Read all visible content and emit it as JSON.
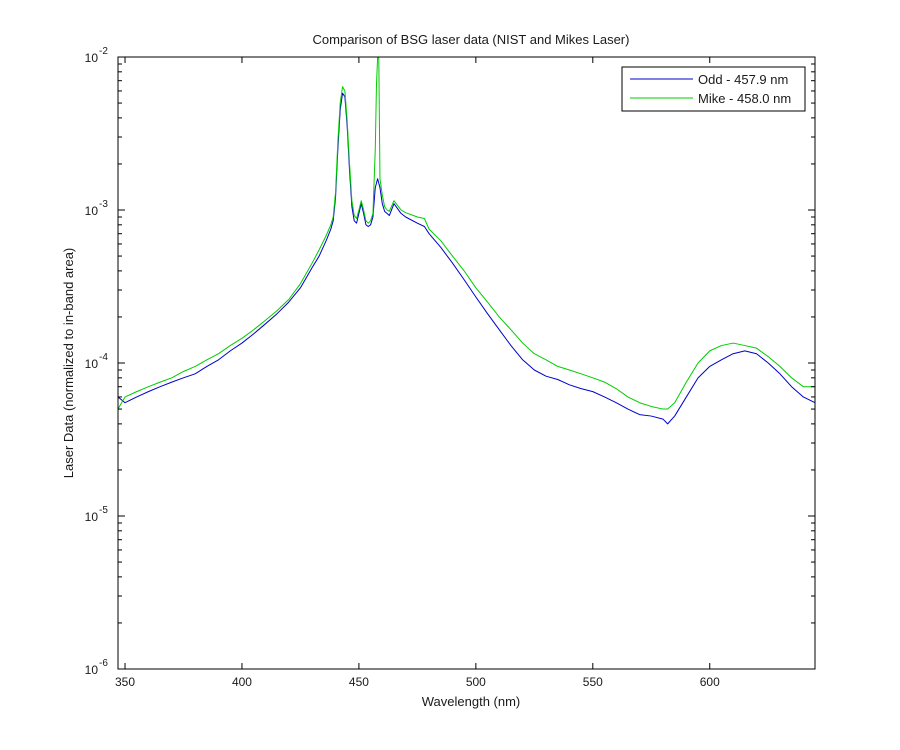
{
  "chart_data": {
    "type": "line",
    "title": "Comparison of BSG laser data (NIST and Mikes Laser)",
    "xlabel": "Wavelength (nm)",
    "ylabel": "Laser Data (normalized to in-band area)",
    "xlim": [
      347,
      645
    ],
    "ylim": [
      1e-06,
      0.01
    ],
    "yscale": "log",
    "grid": false,
    "legend_position": "top-right",
    "x_ticks": [
      350,
      400,
      450,
      500,
      550,
      600
    ],
    "x_tick_labels": [
      "350",
      "400",
      "450",
      "500",
      "550",
      "600"
    ],
    "y_ticks": [
      {
        "value": 0.01,
        "base": "10",
        "exp": "-2"
      },
      {
        "value": 0.001,
        "base": "10",
        "exp": "-3"
      },
      {
        "value": 0.0001,
        "base": "10",
        "exp": "-4"
      },
      {
        "value": 1e-05,
        "base": "10",
        "exp": "-5"
      },
      {
        "value": 1e-06,
        "base": "10",
        "exp": "-6"
      }
    ],
    "series": [
      {
        "name": "Odd - 457.9 nm",
        "color": "#0000cc",
        "x": [
          347,
          350,
          355,
          360,
          365,
          370,
          375,
          380,
          385,
          390,
          395,
          400,
          405,
          410,
          415,
          420,
          425,
          430,
          433,
          436,
          438,
          439,
          440,
          441,
          442,
          443,
          444,
          445,
          446,
          447,
          448,
          449,
          450,
          451,
          452,
          453,
          454,
          455,
          456,
          457,
          458,
          459,
          460,
          461,
          462,
          463,
          465,
          468,
          470,
          475,
          478,
          480,
          485,
          490,
          495,
          500,
          505,
          510,
          515,
          520,
          525,
          530,
          535,
          540,
          545,
          550,
          555,
          560,
          565,
          570,
          575,
          580,
          582,
          585,
          590,
          595,
          600,
          605,
          610,
          615,
          620,
          625,
          630,
          635,
          640,
          645
        ],
        "y": [
          6e-05,
          5.5e-05,
          6e-05,
          6.5e-05,
          7e-05,
          7.5e-05,
          8e-05,
          8.5e-05,
          9.5e-05,
          0.000105,
          0.00012,
          0.000135,
          0.000155,
          0.00018,
          0.00021,
          0.00025,
          0.00031,
          0.00042,
          0.0005,
          0.00063,
          0.00075,
          0.00085,
          0.0012,
          0.0025,
          0.0045,
          0.0058,
          0.0055,
          0.0035,
          0.0018,
          0.00105,
          0.00085,
          0.00082,
          0.00095,
          0.0011,
          0.00095,
          0.0008,
          0.00078,
          0.0008,
          0.0009,
          0.0014,
          0.0016,
          0.0014,
          0.0011,
          0.00098,
          0.00095,
          0.00092,
          0.0011,
          0.00095,
          0.0009,
          0.00082,
          0.00078,
          0.0007,
          0.00057,
          0.00045,
          0.00035,
          0.00027,
          0.00021,
          0.000165,
          0.00013,
          0.000105,
          9e-05,
          8.2e-05,
          7.8e-05,
          7.2e-05,
          6.8e-05,
          6.5e-05,
          6e-05,
          5.5e-05,
          5e-05,
          4.6e-05,
          4.5e-05,
          4.3e-05,
          4e-05,
          4.5e-05,
          6e-05,
          8e-05,
          9.5e-05,
          0.000105,
          0.000115,
          0.00012,
          0.000115,
          0.0001,
          8.5e-05,
          7e-05,
          6e-05,
          5.5e-05
        ]
      },
      {
        "name": "Mike - 458.0 nm",
        "color": "#00cc00",
        "x": [
          347,
          350,
          355,
          360,
          365,
          370,
          375,
          380,
          385,
          390,
          395,
          400,
          405,
          410,
          415,
          420,
          425,
          430,
          433,
          436,
          438,
          439,
          440,
          441,
          442,
          443,
          444,
          445,
          446,
          447,
          448,
          449,
          450,
          451,
          452,
          453,
          454,
          455,
          456,
          457,
          457.5,
          458,
          458.5,
          459,
          460,
          461,
          462,
          463,
          465,
          468,
          470,
          475,
          478,
          480,
          485,
          490,
          495,
          500,
          505,
          510,
          515,
          520,
          525,
          530,
          535,
          540,
          545,
          550,
          555,
          560,
          565,
          570,
          575,
          580,
          582,
          585,
          590,
          595,
          600,
          605,
          610,
          615,
          620,
          625,
          630,
          635,
          640,
          645
        ],
        "y": [
          5e-05,
          6e-05,
          6.5e-05,
          7e-05,
          7.5e-05,
          8e-05,
          8.8e-05,
          9.5e-05,
          0.000105,
          0.000115,
          0.00013,
          0.000145,
          0.000165,
          0.00019,
          0.00022,
          0.00026,
          0.00033,
          0.00045,
          0.00055,
          0.00068,
          0.0008,
          0.0009,
          0.0013,
          0.0028,
          0.005,
          0.0064,
          0.006,
          0.0038,
          0.002,
          0.00115,
          0.00092,
          0.00088,
          0.001,
          0.00115,
          0.001,
          0.00085,
          0.00082,
          0.00085,
          0.00095,
          0.0025,
          0.0065,
          0.0115,
          0.0098,
          0.0016,
          0.00125,
          0.00105,
          0.001,
          0.00098,
          0.00115,
          0.001,
          0.00096,
          0.0009,
          0.00088,
          0.00075,
          0.00063,
          0.0005,
          0.0004,
          0.00031,
          0.00025,
          0.0002,
          0.000165,
          0.000135,
          0.000115,
          0.000105,
          9.5e-05,
          9e-05,
          8.5e-05,
          8e-05,
          7.5e-05,
          6.8e-05,
          6e-05,
          5.5e-05,
          5.2e-05,
          5e-05,
          5e-05,
          5.5e-05,
          7.5e-05,
          0.0001,
          0.00012,
          0.00013,
          0.000135,
          0.00013,
          0.000125,
          0.00011,
          9.5e-05,
          8e-05,
          7e-05,
          7e-05
        ]
      }
    ]
  }
}
